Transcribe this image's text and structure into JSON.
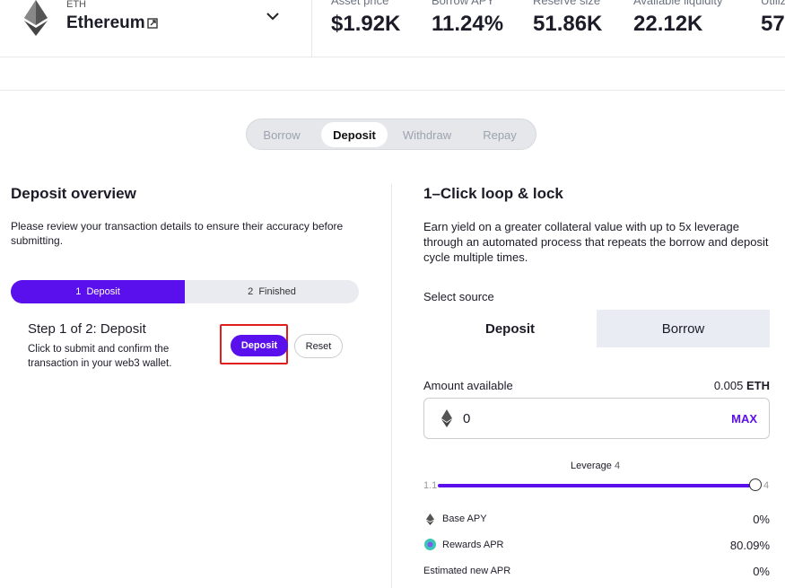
{
  "header": {
    "symbol": "ETH",
    "name": "Ethereum",
    "stats": [
      {
        "label": "Asset price",
        "value": "$1.92K"
      },
      {
        "label": "Borrow APY",
        "value": "11.24%"
      },
      {
        "label": "Reserve size",
        "value": "51.86K"
      },
      {
        "label": "Available liquidity",
        "value": "22.12K"
      },
      {
        "label": "Utiliz",
        "value": "57"
      }
    ]
  },
  "tabs": {
    "items": [
      "Borrow",
      "Deposit",
      "Withdraw",
      "Repay"
    ],
    "active": 1
  },
  "left": {
    "title": "Deposit overview",
    "description": "Please review your transaction details to ensure their accuracy before submitting.",
    "steps": [
      "1  Deposit",
      "2  Finished"
    ],
    "step_title": "Step 1 of 2: Deposit",
    "step_text": "Click to submit and confirm the transaction in your web3 wallet.",
    "primary_button": "Deposit",
    "secondary_button": "Reset"
  },
  "right": {
    "title": "1–Click loop & lock",
    "description": "Earn yield on a greater collateral value with up to 5x leverage through an automated process that repeats the borrow and deposit cycle multiple times.",
    "source_label": "Select source",
    "source_options": [
      "Deposit",
      "Borrow"
    ],
    "amount_label": "Amount available",
    "amount_value": "0.005",
    "amount_unit": "ETH",
    "input_value": "0",
    "max_button": "MAX",
    "leverage_label": "Leverage",
    "leverage_value": 4,
    "leverage_min": 1.1,
    "leverage_max": 4,
    "rows": [
      {
        "label": "Base APY",
        "value": "0%"
      },
      {
        "label": "Rewards APR",
        "value": "80.09%"
      },
      {
        "label": "Estimated new APR",
        "value": "0%"
      }
    ]
  }
}
